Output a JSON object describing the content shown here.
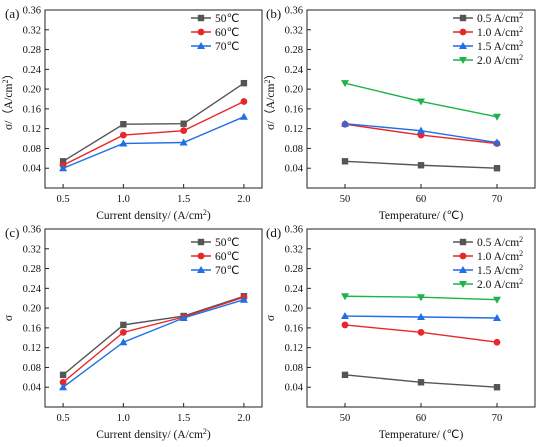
{
  "chart_data": [
    {
      "type": "line",
      "panel_label": "(a)",
      "xlabel": "Current density/ (A/cm²)",
      "ylabel": "σ/（A/cm²）",
      "x": [
        0.5,
        1.0,
        1.5,
        2.0
      ],
      "x_ticks": [
        "0.5",
        "1.0",
        "1.5",
        "2.0"
      ],
      "y_ticks": [
        "0.04",
        "0.08",
        "0.12",
        "0.16",
        "0.20",
        "0.24",
        "0.28",
        "0.32",
        "0.36"
      ],
      "ylim": [
        0.0,
        0.36
      ],
      "grid": false,
      "legend": "top-right",
      "series": [
        {
          "name": "50℃",
          "color": "#555555",
          "marker": "square",
          "values": [
            0.054,
            0.129,
            0.13,
            0.212
          ]
        },
        {
          "name": "60℃",
          "color": "#e8272a",
          "marker": "circle",
          "values": [
            0.046,
            0.107,
            0.116,
            0.175
          ]
        },
        {
          "name": "70℃",
          "color": "#1f6fe6",
          "marker": "triangle",
          "values": [
            0.04,
            0.09,
            0.092,
            0.144
          ]
        }
      ]
    },
    {
      "type": "line",
      "panel_label": "(b)",
      "xlabel": "Temperature/ (℃)",
      "ylabel": "σ/（A/cm²）",
      "x": [
        50,
        60,
        70
      ],
      "x_ticks": [
        "50",
        "60",
        "70"
      ],
      "y_ticks": [
        "0.04",
        "0.08",
        "0.12",
        "0.16",
        "0.20",
        "0.24",
        "0.28",
        "0.32",
        "0.36"
      ],
      "ylim": [
        0.0,
        0.36
      ],
      "grid": false,
      "legend": "top-right",
      "series": [
        {
          "name": "0.5 A/cm²",
          "color": "#555555",
          "marker": "square",
          "values": [
            0.054,
            0.046,
            0.04
          ]
        },
        {
          "name": "1.0 A/cm²",
          "color": "#e8272a",
          "marker": "circle",
          "values": [
            0.129,
            0.107,
            0.09
          ]
        },
        {
          "name": "1.5 A/cm²",
          "color": "#1f6fe6",
          "marker": "triangle",
          "values": [
            0.13,
            0.116,
            0.092
          ]
        },
        {
          "name": "2.0 A/cm²",
          "color": "#1db34a",
          "marker": "triangle-down",
          "values": [
            0.212,
            0.175,
            0.144
          ]
        }
      ]
    },
    {
      "type": "line",
      "panel_label": "(c)",
      "xlabel": "Current density/ (A/cm²)",
      "ylabel": "σ",
      "x": [
        0.5,
        1.0,
        1.5,
        2.0
      ],
      "x_ticks": [
        "0.5",
        "1.0",
        "1.5",
        "2.0"
      ],
      "y_ticks": [
        "0.04",
        "0.08",
        "0.12",
        "0.16",
        "0.20",
        "0.24",
        "0.28",
        "0.32",
        "0.36"
      ],
      "ylim": [
        0.0,
        0.36
      ],
      "grid": false,
      "legend": "top-right",
      "series": [
        {
          "name": "50℃",
          "color": "#555555",
          "marker": "square",
          "values": [
            0.065,
            0.166,
            0.184,
            0.224
          ]
        },
        {
          "name": "60℃",
          "color": "#e8272a",
          "marker": "circle",
          "values": [
            0.05,
            0.151,
            0.182,
            0.222
          ]
        },
        {
          "name": "70℃",
          "color": "#1f6fe6",
          "marker": "triangle",
          "values": [
            0.04,
            0.131,
            0.18,
            0.217
          ]
        }
      ]
    },
    {
      "type": "line",
      "panel_label": "(d)",
      "xlabel": "Temperature/ (℃)",
      "ylabel": "σ",
      "x": [
        50,
        60,
        70
      ],
      "x_ticks": [
        "50",
        "60",
        "70"
      ],
      "y_ticks": [
        "0.04",
        "0.08",
        "0.12",
        "0.16",
        "0.20",
        "0.24",
        "0.28",
        "0.32",
        "0.36"
      ],
      "ylim": [
        0.0,
        0.36
      ],
      "grid": false,
      "legend": "top-right",
      "series": [
        {
          "name": "0.5 A/cm²",
          "color": "#555555",
          "marker": "square",
          "values": [
            0.065,
            0.05,
            0.04
          ]
        },
        {
          "name": "1.0 A/cm²",
          "color": "#e8272a",
          "marker": "circle",
          "values": [
            0.166,
            0.151,
            0.131
          ]
        },
        {
          "name": "1.5 A/cm²",
          "color": "#1f6fe6",
          "marker": "triangle",
          "values": [
            0.184,
            0.182,
            0.18
          ]
        },
        {
          "name": "2.0 A/cm²",
          "color": "#1db34a",
          "marker": "triangle-down",
          "values": [
            0.224,
            0.222,
            0.217
          ]
        }
      ]
    }
  ]
}
